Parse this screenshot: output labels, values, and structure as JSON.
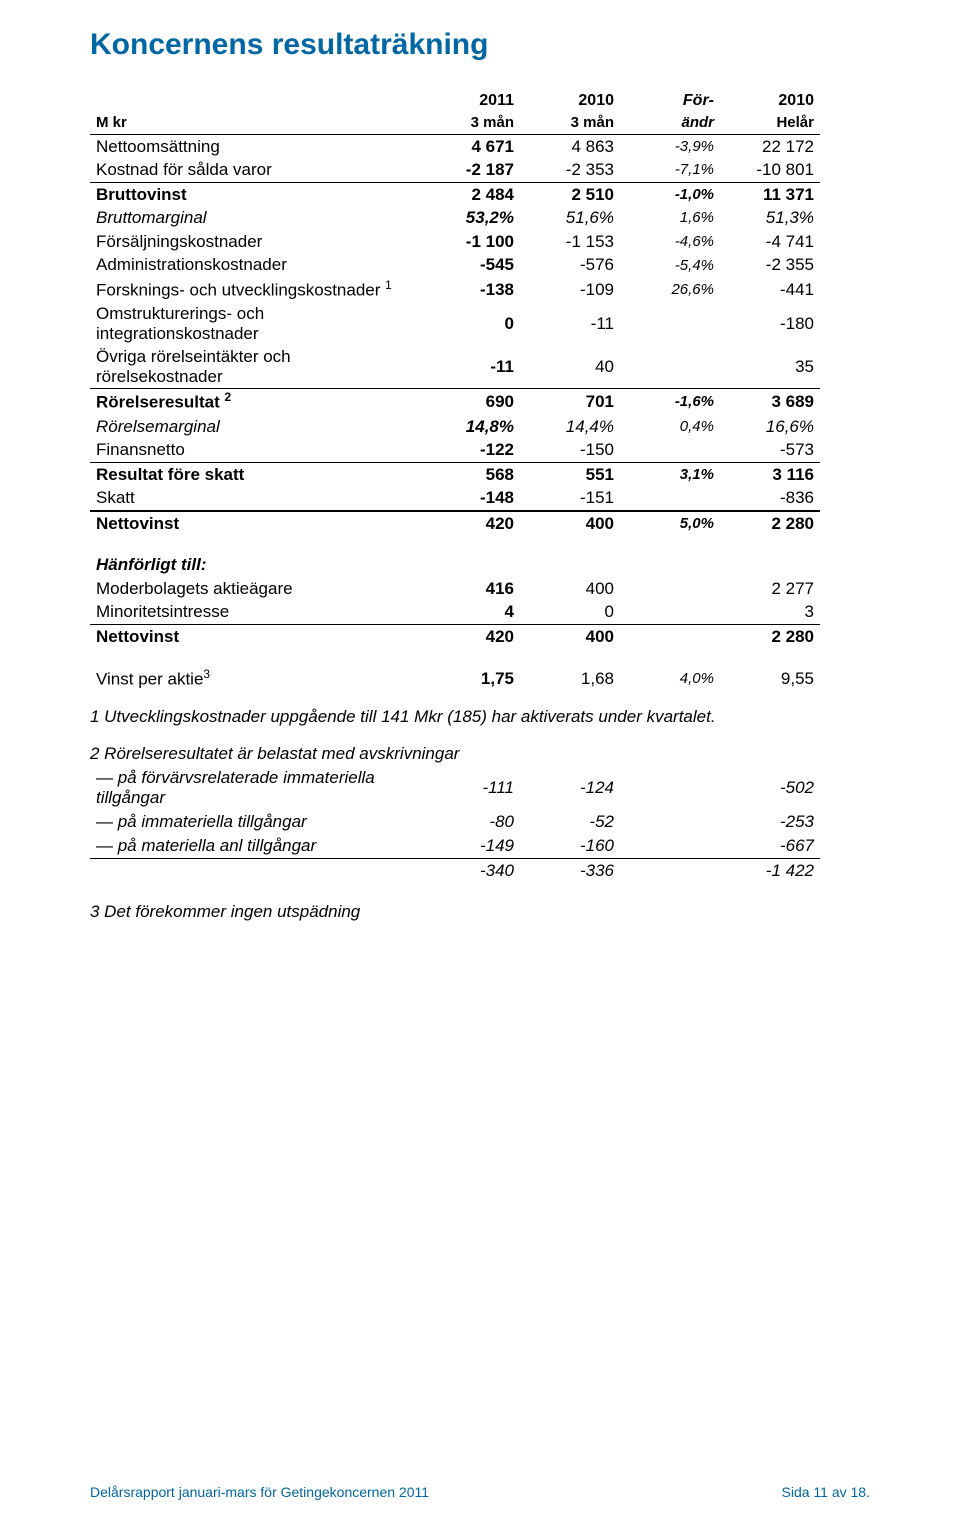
{
  "title": {
    "text": "Koncernens resultaträkning",
    "color": "#0066a4",
    "fontsize": 30
  },
  "colors": {
    "heading": "#0066a4",
    "text": "#000000",
    "rule": "#000000"
  },
  "header": {
    "row1": [
      "",
      "2011",
      "2010",
      "För-",
      "2010"
    ],
    "row2": [
      "M kr",
      "3 mån",
      "3 mån",
      "ändr",
      "Helår"
    ]
  },
  "rows": [
    {
      "label": "Nettoomsättning",
      "c1": "4 671",
      "c2": "4 863",
      "c3": "-3,9%",
      "c4": "22 172"
    },
    {
      "label": "Kostnad för sålda varor",
      "c1": "-2 187",
      "c2": "-2 353",
      "c3": "-7,1%",
      "c4": "-10 801"
    },
    {
      "label": "Bruttovinst",
      "c1": "2 484",
      "c2": "2 510",
      "c3": "-1,0%",
      "c4": "11 371",
      "bold": true,
      "ruleTop": "thin"
    },
    {
      "label": "Bruttomarginal",
      "c1": "53,2%",
      "c2": "51,6%",
      "c3": "1,6%",
      "c4": "51,3%",
      "italic": true
    },
    {
      "label": "Försäljningskostnader",
      "c1": "-1 100",
      "c2": "-1 153",
      "c3": "-4,6%",
      "c4": "-4 741"
    },
    {
      "label": "Administrationskostnader",
      "c1": "-545",
      "c2": "-576",
      "c3": "-5,4%",
      "c4": "-2 355"
    },
    {
      "label": "Forsknings- och utvecklingskostnader",
      "sup": "1",
      "c1": "-138",
      "c2": "-109",
      "c3": "26,6%",
      "c4": "-441"
    },
    {
      "label": "Omstrukturerings- och\nintegrationskostnader",
      "c1": "0",
      "c2": "-11",
      "c3": "",
      "c4": "-180"
    },
    {
      "label": "Övriga rörelseintäkter och\nrörelsekostnader",
      "c1": "-11",
      "c2": "40",
      "c3": "",
      "c4": "35"
    },
    {
      "label": "Rörelseresultat",
      "sup": "2",
      "c1": "690",
      "c2": "701",
      "c3": "-1,6%",
      "c4": "3 689",
      "bold": true,
      "ruleTop": "thin"
    },
    {
      "label": "Rörelsemarginal",
      "c1": "14,8%",
      "c2": "14,4%",
      "c3": "0,4%",
      "c4": "16,6%",
      "italic": true
    },
    {
      "label": "Finansnetto",
      "c1": "-122",
      "c2": "-150",
      "c3": "",
      "c4": "-573"
    },
    {
      "label": "Resultat före skatt",
      "c1": "568",
      "c2": "551",
      "c3": "3,1%",
      "c4": "3 116",
      "bold": true,
      "ruleTop": "thin"
    },
    {
      "label": "Skatt",
      "c1": "-148",
      "c2": "-151",
      "c3": "",
      "c4": "-836"
    },
    {
      "label": "Nettovinst",
      "c1": "420",
      "c2": "400",
      "c3": "5,0%",
      "c4": "2 280",
      "bold": true,
      "ruleTop": "thick"
    }
  ],
  "attribution": {
    "heading": "Hänförligt till:",
    "rows": [
      {
        "label": "Moderbolagets aktieägare",
        "c1": "416",
        "c2": "400",
        "c3": "",
        "c4": "2 277"
      },
      {
        "label": "Minoritetsintresse",
        "c1": "4",
        "c2": "0",
        "c3": "",
        "c4": "3"
      },
      {
        "label": "Nettovinst",
        "c1": "420",
        "c2": "400",
        "c3": "",
        "c4": "2 280",
        "bold": true,
        "ruleTop": "thin"
      }
    ]
  },
  "eps": {
    "label": "Vinst per aktie",
    "sup": "3",
    "c1": "1,75",
    "c2": "1,68",
    "c3": "4,0%",
    "c4": "9,55"
  },
  "footnotes": {
    "note1": "1 Utvecklingskostnader uppgående till 141 Mkr (185) har aktiverats under kvartalet.",
    "note2_heading": "2 Rörelseresultatet är belastat med avskrivningar",
    "note2_rows": [
      {
        "label": "— på förvärvsrelaterade immateriella\ntillgångar",
        "c1": "-111",
        "c2": "-124",
        "c3": "",
        "c4": "-502"
      },
      {
        "label": "— på immateriella tillgångar",
        "c1": "-80",
        "c2": "-52",
        "c3": "",
        "c4": "-253"
      },
      {
        "label": "— på materiella anl tillgångar",
        "c1": "-149",
        "c2": "-160",
        "c3": "",
        "c4": "-667"
      },
      {
        "label": "",
        "c1": "-340",
        "c2": "-336",
        "c3": "",
        "c4": "-1 422",
        "ruleTop": "thin"
      }
    ],
    "note3": "3 Det förekommer ingen utspädning"
  },
  "footer": {
    "left": "Delårsrapport januari-mars för Getingekoncernen 2011",
    "right": "Sida 11 av 18.",
    "left_color": "#0066a4",
    "right_color": "#0066a4"
  }
}
